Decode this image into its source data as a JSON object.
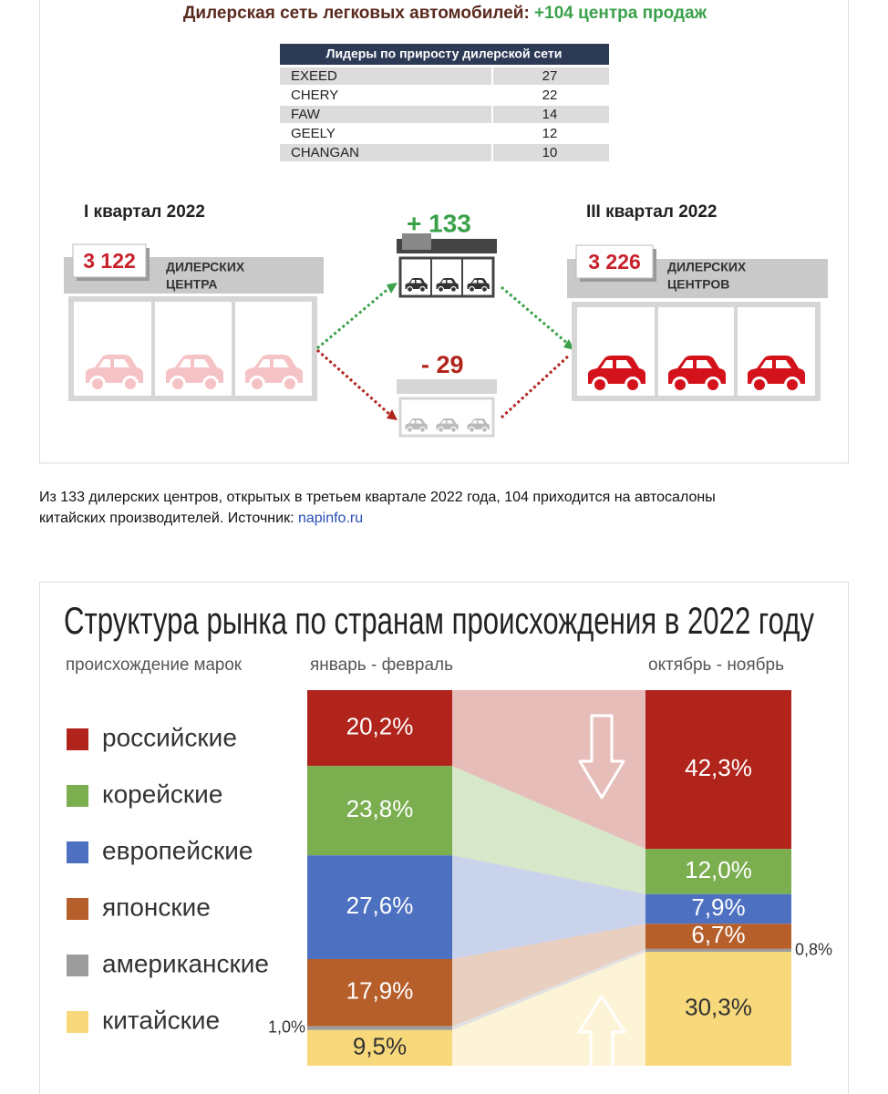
{
  "header": {
    "title": "Дилерская сеть легковых автомобилей: ",
    "title_highlight": "+104 центра продаж"
  },
  "table": {
    "header": "Лидеры по приросту дилерской сети",
    "rows": [
      [
        "EXEED",
        27
      ],
      [
        "CHERY",
        22
      ],
      [
        "FAW",
        14
      ],
      [
        "GEELY",
        12
      ],
      [
        "CHANGAN",
        10
      ]
    ]
  },
  "infographic": {
    "before": {
      "period": "I квартал 2022",
      "count": "3 122",
      "label": [
        "ДИЛЕРСКИХ",
        "ЦЕНТРА"
      ]
    },
    "opened": "+ 133",
    "closed": "- 29",
    "after": {
      "period": "III квартал 2022",
      "count": "3 226",
      "label": [
        "ДИЛЕРСКИХ",
        "ЦЕНТРОВ"
      ]
    }
  },
  "caption": {
    "lines": [
      "Из 133 дилерских центров, открытых в третьем квартале 2022 года, 104 приходится на автосалоны",
      "китайских производителей. Источник: "
    ],
    "link": "napinfo.ru"
  },
  "chart_data": {
    "type": "stacked-bar",
    "title": "Структура рынка по странам происхождения в 2022 году",
    "legend_title": "происхождение марок",
    "categories": [
      "январь - февраль",
      "октябрь - ноябрь"
    ],
    "ylim": [
      0,
      100
    ],
    "series": [
      {
        "name": "российские",
        "color": "#b0241c",
        "values": [
          20.2,
          42.3
        ],
        "value_labels": [
          "20,2%",
          "42,3%"
        ]
      },
      {
        "name": "корейские",
        "color": "#7aae4f",
        "values": [
          23.8,
          12.0
        ],
        "value_labels": [
          "23,8%",
          "12,0%"
        ]
      },
      {
        "name": "европейские",
        "color": "#4d70c1",
        "values": [
          27.6,
          7.9
        ],
        "value_labels": [
          "27,6%",
          "7,9%"
        ]
      },
      {
        "name": "японские",
        "color": "#b65f2b",
        "values": [
          17.9,
          6.7
        ],
        "value_labels": [
          "17,9%",
          "6,7%"
        ]
      },
      {
        "name": "американские",
        "color": "#9c9c9c",
        "values": [
          1.0,
          0.8
        ],
        "value_labels": [
          "1,0%",
          "0,8%"
        ]
      },
      {
        "name": "китайские",
        "color": "#f7d87a",
        "values": [
          9.5,
          30.3
        ],
        "value_labels": [
          "9,5%",
          "30,3%"
        ]
      }
    ]
  }
}
